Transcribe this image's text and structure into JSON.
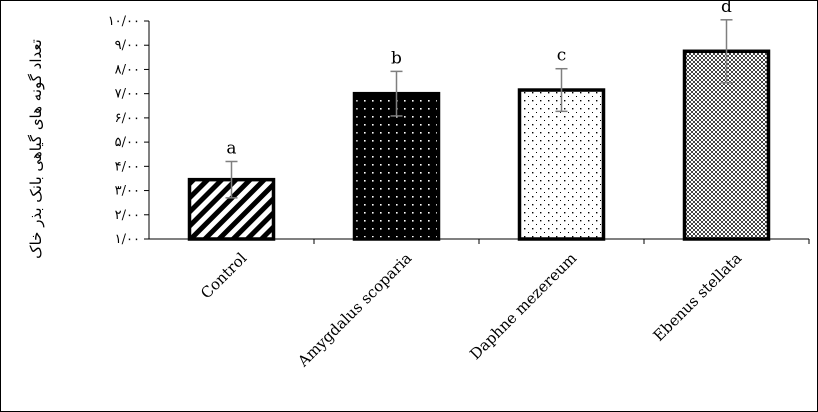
{
  "chart_data": {
    "type": "bar",
    "title": "",
    "xlabel": "",
    "ylabel": "تعداد گونه های گیاهی بانک بذر خاک",
    "categories": [
      "Control",
      "Amygdalus scoparia",
      "Daphne mezereum",
      "Ebenus stellata"
    ],
    "values": [
      3.45,
      7.0,
      7.15,
      8.75
    ],
    "errors": [
      0.75,
      0.92,
      0.88,
      1.3
    ],
    "data_labels": [
      "a",
      "b",
      "c",
      "d"
    ],
    "ylim": [
      1,
      10
    ],
    "yticks": [
      1,
      2,
      3,
      4,
      5,
      6,
      7,
      8,
      9,
      10
    ],
    "ytick_labels": [
      "۱/۰۰",
      "۲/۰۰",
      "۳/۰۰",
      "۴/۰۰",
      "۵/۰۰",
      "۶/۰۰",
      "۷/۰۰",
      "۸/۰۰",
      "۹/۰۰",
      "۱۰/۰۰"
    ],
    "patterns": [
      "diagonal-stripes",
      "black-white-dots",
      "white-black-dots",
      "fine-checker"
    ],
    "grid": false,
    "legend": "none",
    "colors": {
      "bar_outline": "#000000",
      "error_bar": "#7f7f7f",
      "axis": "#000000"
    }
  }
}
